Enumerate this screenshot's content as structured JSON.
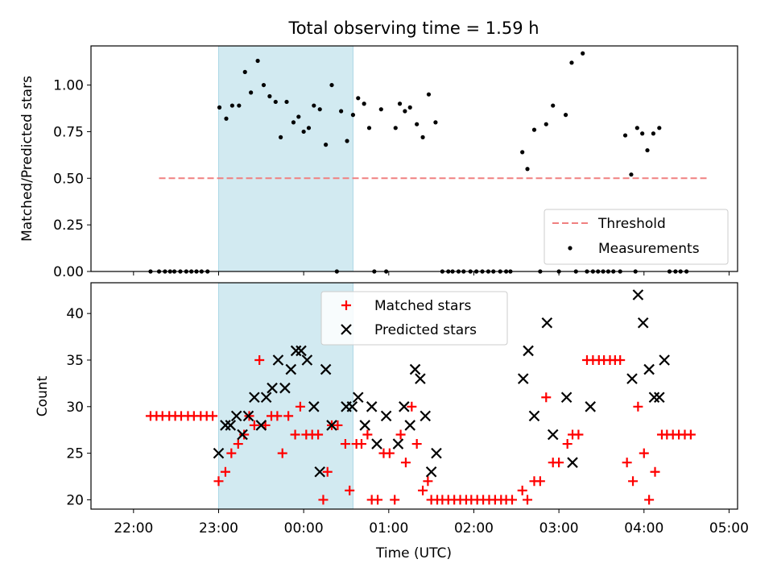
{
  "title": "Total observing time = 1.59 h",
  "colors": {
    "threshold": "#f08080",
    "measurement": "#000000",
    "matched": "#ff0000",
    "predicted": "#000000",
    "span": "#add8e6"
  },
  "chart_data": [
    {
      "type": "scatter",
      "ylabel": "Matched/Predicted stars",
      "xlim": [
        -2.5,
        5.1
      ],
      "ylim": [
        0,
        1.21
      ],
      "yticks": [
        "0.00",
        "0.25",
        "0.50",
        "0.75",
        "1.00"
      ],
      "highlight_span": [
        -1.0,
        0.58
      ],
      "threshold": {
        "name": "Threshold",
        "value": 0.5,
        "x_range": [
          -1.7,
          5.1
        ]
      },
      "legend": {
        "position": "lower right",
        "entries": [
          "Threshold",
          "Measurements"
        ]
      },
      "series": [
        {
          "name": "Measurements",
          "points": [
            [
              -1.8,
              0
            ],
            [
              -1.7,
              0
            ],
            [
              -1.63,
              0
            ],
            [
              -1.57,
              0
            ],
            [
              -1.52,
              0
            ],
            [
              -1.45,
              0
            ],
            [
              -1.38,
              0
            ],
            [
              -1.32,
              0
            ],
            [
              -1.26,
              0
            ],
            [
              -1.2,
              0
            ],
            [
              -1.13,
              0
            ],
            [
              -0.99,
              0.88
            ],
            [
              -0.91,
              0.82
            ],
            [
              -0.84,
              0.89
            ],
            [
              -0.76,
              0.89
            ],
            [
              -0.69,
              1.07
            ],
            [
              -0.62,
              0.96
            ],
            [
              -0.54,
              1.13
            ],
            [
              -0.47,
              1.0
            ],
            [
              -0.4,
              0.94
            ],
            [
              -0.33,
              0.91
            ],
            [
              -0.27,
              0.72
            ],
            [
              -0.2,
              0.91
            ],
            [
              -0.12,
              0.8
            ],
            [
              -0.06,
              0.83
            ],
            [
              0.0,
              0.75
            ],
            [
              0.06,
              0.77
            ],
            [
              0.12,
              0.89
            ],
            [
              0.19,
              0.87
            ],
            [
              0.26,
              0.68
            ],
            [
              0.33,
              1.0
            ],
            [
              0.39,
              0
            ],
            [
              0.44,
              0.86
            ],
            [
              0.51,
              0.7
            ],
            [
              0.58,
              0.84
            ],
            [
              0.64,
              0.93
            ],
            [
              0.71,
              0.9
            ],
            [
              0.77,
              0.77
            ],
            [
              0.83,
              0
            ],
            [
              0.91,
              0.87
            ],
            [
              0.97,
              0
            ],
            [
              1.08,
              0.77
            ],
            [
              1.13,
              0.9
            ],
            [
              1.19,
              0.86
            ],
            [
              1.25,
              0.88
            ],
            [
              1.33,
              0.79
            ],
            [
              1.4,
              0.72
            ],
            [
              1.47,
              0.95
            ],
            [
              1.55,
              0.8
            ],
            [
              1.63,
              0
            ],
            [
              1.7,
              0
            ],
            [
              1.75,
              0
            ],
            [
              1.82,
              0
            ],
            [
              1.88,
              0
            ],
            [
              1.96,
              0
            ],
            [
              2.03,
              0
            ],
            [
              2.1,
              0
            ],
            [
              2.17,
              0
            ],
            [
              2.23,
              0
            ],
            [
              2.31,
              0
            ],
            [
              2.38,
              0
            ],
            [
              2.43,
              0
            ],
            [
              2.57,
              0.64
            ],
            [
              2.63,
              0.55
            ],
            [
              2.71,
              0.76
            ],
            [
              2.78,
              0
            ],
            [
              2.85,
              0.79
            ],
            [
              2.93,
              0.89
            ],
            [
              3.0,
              0
            ],
            [
              3.08,
              0.84
            ],
            [
              3.15,
              1.12
            ],
            [
              3.2,
              0
            ],
            [
              3.28,
              1.17
            ],
            [
              3.33,
              0
            ],
            [
              3.4,
              0
            ],
            [
              3.46,
              0
            ],
            [
              3.52,
              0
            ],
            [
              3.58,
              0
            ],
            [
              3.64,
              0
            ],
            [
              3.72,
              0
            ],
            [
              3.78,
              0.73
            ],
            [
              3.85,
              0.52
            ],
            [
              3.9,
              0
            ],
            [
              3.92,
              0.77
            ],
            [
              3.98,
              0.74
            ],
            [
              4.04,
              0.65
            ],
            [
              4.11,
              0.74
            ],
            [
              4.18,
              0.77
            ],
            [
              4.3,
              0
            ],
            [
              4.37,
              0
            ],
            [
              4.43,
              0
            ],
            [
              4.5,
              0
            ]
          ]
        }
      ]
    },
    {
      "type": "scatter",
      "xlabel": "Time (UTC)",
      "ylabel": "Count",
      "xlim": [
        -2.5,
        5.1
      ],
      "ylim": [
        19,
        43.3
      ],
      "yticks": [
        "20",
        "25",
        "30",
        "35",
        "40"
      ],
      "xticks": [
        "22:00",
        "23:00",
        "00:00",
        "01:00",
        "02:00",
        "03:00",
        "04:00",
        "05:00"
      ],
      "highlight_span": [
        -1.0,
        0.58
      ],
      "legend": {
        "position": "upper center",
        "entries": [
          "Matched stars",
          "Predicted stars"
        ]
      },
      "series": [
        {
          "name": "Matched stars",
          "marker": "+",
          "points": [
            [
              -1.8,
              29
            ],
            [
              -1.73,
              29
            ],
            [
              -1.66,
              29
            ],
            [
              -1.58,
              29
            ],
            [
              -1.51,
              29
            ],
            [
              -1.44,
              29
            ],
            [
              -1.36,
              29
            ],
            [
              -1.29,
              29
            ],
            [
              -1.21,
              29
            ],
            [
              -1.14,
              29
            ],
            [
              -1.07,
              29
            ],
            [
              -1.0,
              22
            ],
            [
              -0.92,
              23
            ],
            [
              -0.85,
              25
            ],
            [
              -0.77,
              26
            ],
            [
              -0.7,
              27
            ],
            [
              -0.64,
              29
            ],
            [
              -0.58,
              28
            ],
            [
              -0.52,
              35
            ],
            [
              -0.45,
              28
            ],
            [
              -0.38,
              29
            ],
            [
              -0.31,
              29
            ],
            [
              -0.25,
              25
            ],
            [
              -0.18,
              29
            ],
            [
              -0.1,
              27
            ],
            [
              -0.04,
              30
            ],
            [
              0.03,
              27
            ],
            [
              0.1,
              27
            ],
            [
              0.17,
              27
            ],
            [
              0.23,
              20
            ],
            [
              0.28,
              23
            ],
            [
              0.33,
              28
            ],
            [
              0.4,
              28
            ],
            [
              0.49,
              26
            ],
            [
              0.54,
              21
            ],
            [
              0.62,
              26
            ],
            [
              0.68,
              26
            ],
            [
              0.75,
              27
            ],
            [
              0.8,
              20
            ],
            [
              0.87,
              20
            ],
            [
              0.94,
              25
            ],
            [
              1.01,
              25
            ],
            [
              1.07,
              20
            ],
            [
              1.14,
              27
            ],
            [
              1.2,
              24
            ],
            [
              1.27,
              30
            ],
            [
              1.33,
              26
            ],
            [
              1.4,
              21
            ],
            [
              1.46,
              22
            ],
            [
              1.5,
              20
            ],
            [
              1.57,
              20
            ],
            [
              1.63,
              20
            ],
            [
              1.7,
              20
            ],
            [
              1.77,
              20
            ],
            [
              1.84,
              20
            ],
            [
              1.91,
              20
            ],
            [
              1.97,
              20
            ],
            [
              2.04,
              20
            ],
            [
              2.11,
              20
            ],
            [
              2.18,
              20
            ],
            [
              2.25,
              20
            ],
            [
              2.32,
              20
            ],
            [
              2.38,
              20
            ],
            [
              2.45,
              20
            ],
            [
              2.57,
              21
            ],
            [
              2.63,
              20
            ],
            [
              2.71,
              22
            ],
            [
              2.78,
              22
            ],
            [
              2.85,
              31
            ],
            [
              2.93,
              24
            ],
            [
              3.0,
              24
            ],
            [
              3.1,
              26
            ],
            [
              3.16,
              27
            ],
            [
              3.23,
              27
            ],
            [
              3.33,
              35
            ],
            [
              3.4,
              35
            ],
            [
              3.47,
              35
            ],
            [
              3.53,
              35
            ],
            [
              3.6,
              35
            ],
            [
              3.66,
              35
            ],
            [
              3.72,
              35
            ],
            [
              3.8,
              24
            ],
            [
              3.87,
              22
            ],
            [
              3.93,
              30
            ],
            [
              4.0,
              25
            ],
            [
              4.06,
              20
            ],
            [
              4.13,
              23
            ],
            [
              4.21,
              27
            ],
            [
              4.27,
              27
            ],
            [
              4.34,
              27
            ],
            [
              4.41,
              27
            ],
            [
              4.48,
              27
            ],
            [
              4.55,
              27
            ]
          ]
        },
        {
          "name": "Predicted stars",
          "marker": "x",
          "points": [
            [
              -1.0,
              25
            ],
            [
              -0.92,
              28
            ],
            [
              -0.86,
              28
            ],
            [
              -0.79,
              29
            ],
            [
              -0.72,
              27
            ],
            [
              -0.65,
              29
            ],
            [
              -0.58,
              31
            ],
            [
              -0.5,
              28
            ],
            [
              -0.44,
              31
            ],
            [
              -0.37,
              32
            ],
            [
              -0.3,
              35
            ],
            [
              -0.22,
              32
            ],
            [
              -0.15,
              34
            ],
            [
              -0.09,
              36
            ],
            [
              -0.03,
              36
            ],
            [
              0.04,
              35
            ],
            [
              0.12,
              30
            ],
            [
              0.19,
              23
            ],
            [
              0.26,
              34
            ],
            [
              0.33,
              28
            ],
            [
              0.5,
              30
            ],
            [
              0.57,
              30
            ],
            [
              0.64,
              31
            ],
            [
              0.72,
              28
            ],
            [
              0.8,
              30
            ],
            [
              0.86,
              26
            ],
            [
              0.97,
              29
            ],
            [
              1.11,
              26
            ],
            [
              1.18,
              30
            ],
            [
              1.25,
              28
            ],
            [
              1.31,
              34
            ],
            [
              1.37,
              33
            ],
            [
              1.43,
              29
            ],
            [
              1.5,
              23
            ],
            [
              1.56,
              25
            ],
            [
              2.58,
              33
            ],
            [
              2.64,
              36
            ],
            [
              2.71,
              29
            ],
            [
              2.86,
              39
            ],
            [
              2.93,
              27
            ],
            [
              3.09,
              31
            ],
            [
              3.16,
              24
            ],
            [
              3.37,
              30
            ],
            [
              3.86,
              33
            ],
            [
              3.93,
              42
            ],
            [
              3.99,
              39
            ],
            [
              4.06,
              34
            ],
            [
              4.12,
              31
            ],
            [
              4.18,
              31
            ],
            [
              4.24,
              35
            ]
          ]
        }
      ]
    }
  ]
}
